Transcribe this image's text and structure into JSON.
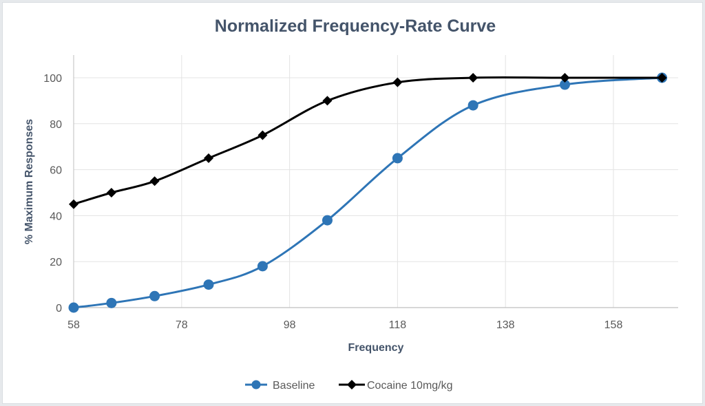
{
  "chart_data": {
    "type": "scatter",
    "title": "Normalized Frequency-Rate Curve",
    "xlabel": "Frequency",
    "ylabel": "% Maximum Responses",
    "xlim": [
      58,
      170
    ],
    "ylim": [
      0,
      110
    ],
    "x_ticks": [
      58,
      78,
      98,
      118,
      138,
      158
    ],
    "y_ticks": [
      0,
      20,
      40,
      60,
      80,
      100
    ],
    "grid": true,
    "smooth_lines": true,
    "legend_position": "bottom",
    "series": [
      {
        "name": "Baseline",
        "color": "#2e75b6",
        "marker": "circle",
        "x": [
          58,
          65,
          73,
          83,
          93,
          105,
          118,
          132,
          149,
          167
        ],
        "y": [
          0,
          2,
          5,
          10,
          18,
          38,
          65,
          88,
          97,
          100
        ]
      },
      {
        "name": "Cocaine 10mg/kg",
        "color": "#000000",
        "marker": "diamond",
        "x": [
          58,
          65,
          73,
          83,
          93,
          105,
          118,
          132,
          149,
          167
        ],
        "y": [
          45,
          50,
          55,
          65,
          75,
          90,
          98,
          100,
          100,
          100
        ]
      }
    ]
  }
}
